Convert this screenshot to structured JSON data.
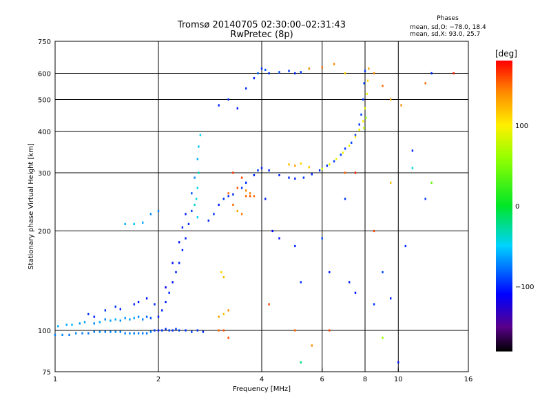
{
  "title": "Tromsø 20140705 02:30:00–02:31:43",
  "subtitle": "RwPretec (8p)",
  "phases_box": {
    "heading": "Phases",
    "line_o": "mean, sd,O: −78.0, 18.4",
    "line_x": "mean, sd,X: 93.0, 25.7"
  },
  "colorbar": {
    "unit_label": "[deg]",
    "ticks": [
      {
        "value": 100,
        "label": "100"
      },
      {
        "value": 0,
        "label": "0"
      },
      {
        "value": -100,
        "label": "−100"
      }
    ],
    "range": [
      -180,
      180
    ]
  },
  "chart_data": {
    "type": "scatter",
    "xlabel": "Frequency [MHz]",
    "ylabel": "Stationary phase Virtual Height [km]",
    "xscale": "log",
    "yscale": "log",
    "xlim": [
      1,
      16
    ],
    "ylim": [
      75,
      750
    ],
    "xticks": [
      {
        "value": 1,
        "label": "1"
      },
      {
        "value": 2,
        "label": "2"
      },
      {
        "value": 4,
        "label": "4"
      },
      {
        "value": 6,
        "label": "6"
      },
      {
        "value": 8,
        "label": "8"
      },
      {
        "value": 10,
        "label": "10"
      },
      {
        "value": 16,
        "label": "16"
      }
    ],
    "yticks": [
      {
        "value": 75,
        "label": "75"
      },
      {
        "value": 100,
        "label": "100"
      },
      {
        "value": 200,
        "label": "200"
      },
      {
        "value": 300,
        "label": "300"
      },
      {
        "value": 400,
        "label": "400"
      },
      {
        "value": 500,
        "label": "500"
      },
      {
        "value": 600,
        "label": "600"
      },
      {
        "value": 750,
        "label": "750"
      }
    ],
    "x_gridlines": [
      2,
      4,
      6,
      8,
      10
    ],
    "y_gridlines": [
      100,
      200,
      300,
      400,
      500,
      600
    ],
    "grid": true,
    "color_encoding": "phase (deg)",
    "points": [
      [
        1.0,
        97,
        -75
      ],
      [
        1.05,
        97,
        -72
      ],
      [
        1.1,
        97,
        -76
      ],
      [
        1.15,
        98,
        -70
      ],
      [
        1.2,
        98,
        -74
      ],
      [
        1.25,
        98,
        -78
      ],
      [
        1.3,
        99,
        -73
      ],
      [
        1.35,
        99,
        -70
      ],
      [
        1.4,
        99,
        -75
      ],
      [
        1.45,
        99,
        -72
      ],
      [
        1.5,
        99,
        -70
      ],
      [
        1.55,
        99,
        -76
      ],
      [
        1.6,
        98,
        -73
      ],
      [
        1.65,
        98,
        -71
      ],
      [
        1.7,
        98,
        -75
      ],
      [
        1.75,
        98,
        -72
      ],
      [
        1.8,
        98,
        -74
      ],
      [
        1.85,
        98,
        -78
      ],
      [
        1.9,
        99,
        -75
      ],
      [
        1.95,
        100,
        -95
      ],
      [
        1.02,
        103,
        -60
      ],
      [
        1.08,
        104,
        -62
      ],
      [
        1.12,
        104,
        -58
      ],
      [
        1.18,
        105,
        -66
      ],
      [
        1.22,
        106,
        -64
      ],
      [
        1.3,
        105,
        -70
      ],
      [
        1.35,
        106,
        -60
      ],
      [
        1.4,
        108,
        -72
      ],
      [
        1.45,
        107,
        -65
      ],
      [
        1.5,
        108,
        -60
      ],
      [
        1.55,
        107,
        -68
      ],
      [
        1.6,
        109,
        -70
      ],
      [
        1.65,
        108,
        -66
      ],
      [
        1.7,
        109,
        -62
      ],
      [
        1.75,
        110,
        -70
      ],
      [
        1.8,
        108,
        -74
      ],
      [
        1.85,
        110,
        -80
      ],
      [
        1.9,
        109,
        -90
      ],
      [
        1.25,
        112,
        -95
      ],
      [
        1.3,
        110,
        -100
      ],
      [
        1.4,
        115,
        -92
      ],
      [
        1.5,
        118,
        -98
      ],
      [
        1.55,
        116,
        -102
      ],
      [
        1.7,
        120,
        -96
      ],
      [
        1.75,
        122,
        -100
      ],
      [
        1.85,
        125,
        -104
      ],
      [
        1.95,
        120,
        -98
      ],
      [
        2.0,
        100,
        -100
      ],
      [
        2.05,
        100,
        -95
      ],
      [
        2.1,
        101,
        -98
      ],
      [
        2.15,
        100,
        -92
      ],
      [
        2.2,
        100,
        -96
      ],
      [
        2.25,
        101,
        -94
      ],
      [
        2.3,
        100,
        -90
      ],
      [
        2.4,
        100,
        -95
      ],
      [
        2.5,
        99,
        -92
      ],
      [
        2.6,
        100,
        -96
      ],
      [
        2.7,
        99,
        -98
      ],
      [
        2.0,
        110,
        -105
      ],
      [
        2.05,
        115,
        -102
      ],
      [
        2.1,
        122,
        -100
      ],
      [
        2.15,
        130,
        -98
      ],
      [
        2.2,
        140,
        -104
      ],
      [
        2.25,
        150,
        -100
      ],
      [
        2.3,
        160,
        -102
      ],
      [
        2.35,
        175,
        -98
      ],
      [
        2.4,
        190,
        -100
      ],
      [
        2.45,
        210,
        -96
      ],
      [
        2.5,
        230,
        -92
      ],
      [
        2.5,
        260,
        -85
      ],
      [
        2.55,
        290,
        -70
      ],
      [
        2.6,
        330,
        -60
      ],
      [
        2.62,
        360,
        -55
      ],
      [
        2.65,
        390,
        -50
      ],
      [
        2.58,
        250,
        -40
      ],
      [
        2.6,
        270,
        -45
      ],
      [
        2.55,
        240,
        -40
      ],
      [
        2.62,
        300,
        -35
      ],
      [
        2.6,
        220,
        -50
      ],
      [
        2.1,
        135,
        -110
      ],
      [
        2.2,
        160,
        -108
      ],
      [
        2.3,
        185,
        -105
      ],
      [
        2.35,
        205,
        -100
      ],
      [
        2.4,
        225,
        -102
      ],
      [
        2.8,
        215,
        -100
      ],
      [
        2.9,
        225,
        -98
      ],
      [
        3.0,
        240,
        -102
      ],
      [
        3.1,
        250,
        -96
      ],
      [
        3.2,
        255,
        -100
      ],
      [
        3.3,
        258,
        -98
      ],
      [
        3.5,
        270,
        -95
      ],
      [
        3.6,
        280,
        -98
      ],
      [
        3.8,
        295,
        -100
      ],
      [
        3.9,
        305,
        -96
      ],
      [
        4.0,
        310,
        -100
      ],
      [
        4.2,
        305,
        -98
      ],
      [
        4.5,
        295,
        -100
      ],
      [
        4.8,
        290,
        -98
      ],
      [
        5.0,
        288,
        -100
      ],
      [
        5.3,
        290,
        -96
      ],
      [
        5.6,
        297,
        -98
      ],
      [
        5.9,
        305,
        -100
      ],
      [
        6.2,
        315,
        -96
      ],
      [
        6.5,
        325,
        -92
      ],
      [
        6.8,
        340,
        -90
      ],
      [
        7.0,
        355,
        -95
      ],
      [
        7.3,
        370,
        -92
      ],
      [
        7.5,
        390,
        -94
      ],
      [
        7.7,
        420,
        -96
      ],
      [
        7.8,
        450,
        -92
      ],
      [
        7.9,
        500,
        -95
      ],
      [
        7.95,
        560,
        -90
      ],
      [
        8.0,
        610,
        -95
      ],
      [
        6.0,
        308,
        80
      ],
      [
        6.3,
        318,
        85
      ],
      [
        6.6,
        330,
        90
      ],
      [
        6.9,
        345,
        95
      ],
      [
        7.2,
        362,
        92
      ],
      [
        7.5,
        385,
        100
      ],
      [
        7.7,
        405,
        95
      ],
      [
        7.9,
        430,
        98
      ],
      [
        8.0,
        470,
        90
      ],
      [
        8.1,
        520,
        95
      ],
      [
        8.15,
        570,
        110
      ],
      [
        8.2,
        620,
        130
      ],
      [
        8.05,
        440,
        60
      ],
      [
        7.95,
        410,
        70
      ],
      [
        3.2,
        260,
        150
      ],
      [
        3.4,
        270,
        155
      ],
      [
        3.6,
        265,
        140
      ],
      [
        3.7,
        260,
        145
      ],
      [
        3.5,
        290,
        160
      ],
      [
        3.3,
        300,
        165
      ],
      [
        3.3,
        240,
        150
      ],
      [
        3.4,
        230,
        130
      ],
      [
        3.5,
        225,
        145
      ],
      [
        3.6,
        255,
        150
      ],
      [
        3.7,
        255,
        155
      ],
      [
        3.8,
        255,
        150
      ],
      [
        4.8,
        318,
        120
      ],
      [
        5.0,
        315,
        130
      ],
      [
        5.2,
        320,
        110
      ],
      [
        5.5,
        312,
        115
      ],
      [
        3.0,
        110,
        130
      ],
      [
        3.1,
        112,
        120
      ],
      [
        3.2,
        115,
        140
      ],
      [
        3.05,
        150,
        110
      ],
      [
        3.1,
        145,
        120
      ],
      [
        3.0,
        100,
        150
      ],
      [
        3.1,
        100,
        155
      ],
      [
        3.2,
        95,
        160
      ],
      [
        3.0,
        480,
        -100
      ],
      [
        3.2,
        500,
        -98
      ],
      [
        3.4,
        470,
        -102
      ],
      [
        3.6,
        540,
        -96
      ],
      [
        3.8,
        580,
        -100
      ],
      [
        4.0,
        620,
        -98
      ],
      [
        4.2,
        600,
        -96
      ],
      [
        4.5,
        605,
        -90
      ],
      [
        4.8,
        610,
        -95
      ],
      [
        5.0,
        600,
        -100
      ],
      [
        5.2,
        605,
        -92
      ],
      [
        5.5,
        620,
        -95
      ],
      [
        3.9,
        600,
        -80
      ],
      [
        4.1,
        615,
        -85
      ],
      [
        1.6,
        210,
        -60
      ],
      [
        1.7,
        210,
        -55
      ],
      [
        1.8,
        212,
        -62
      ],
      [
        1.9,
        225,
        -70
      ],
      [
        2.0,
        230,
        -75
      ],
      [
        4.1,
        250,
        -100
      ],
      [
        4.3,
        200,
        -110
      ],
      [
        4.5,
        190,
        -105
      ],
      [
        5.0,
        180,
        -100
      ],
      [
        5.2,
        140,
        -95
      ],
      [
        6.0,
        190,
        -90
      ],
      [
        6.3,
        150,
        -100
      ],
      [
        7.0,
        250,
        -95
      ],
      [
        7.2,
        140,
        -100
      ],
      [
        7.5,
        130,
        -105
      ],
      [
        8.5,
        120,
        -95
      ],
      [
        9.0,
        150,
        -90
      ],
      [
        9.5,
        125,
        -100
      ],
      [
        10.5,
        180,
        -98
      ],
      [
        11.0,
        350,
        -100
      ],
      [
        12.0,
        250,
        -95
      ],
      [
        12.5,
        600,
        -100
      ],
      [
        10.0,
        80,
        -105
      ],
      [
        5.5,
        620,
        130
      ],
      [
        6.0,
        625,
        150
      ],
      [
        6.5,
        640,
        140
      ],
      [
        7.0,
        600,
        110
      ],
      [
        8.5,
        600,
        140
      ],
      [
        9.0,
        550,
        150
      ],
      [
        9.5,
        500,
        130
      ],
      [
        10.2,
        480,
        140
      ],
      [
        12.0,
        560,
        150
      ],
      [
        14.5,
        600,
        170
      ],
      [
        4.2,
        120,
        160
      ],
      [
        5.0,
        100,
        150
      ],
      [
        5.6,
        90,
        140
      ],
      [
        6.3,
        100,
        160
      ],
      [
        7.0,
        300,
        150
      ],
      [
        7.5,
        300,
        170
      ],
      [
        8.5,
        200,
        160
      ],
      [
        9.5,
        280,
        120
      ],
      [
        11.0,
        310,
        -40
      ],
      [
        12.5,
        280,
        40
      ],
      [
        9.0,
        95,
        60
      ],
      [
        5.2,
        80,
        -20
      ]
    ]
  }
}
